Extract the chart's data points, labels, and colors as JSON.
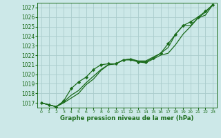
{
  "title": "Graphe pression niveau de la mer (hPa)",
  "bg_color": "#cce8e8",
  "grid_color": "#aacccc",
  "line_color": "#1a6b1a",
  "marker_color": "#1a6b1a",
  "ylim": [
    1016.5,
    1027.5
  ],
  "yticks": [
    1017,
    1018,
    1019,
    1020,
    1021,
    1022,
    1023,
    1024,
    1025,
    1026,
    1027
  ],
  "xlim": [
    -0.5,
    23.5
  ],
  "xticks": [
    0,
    1,
    2,
    3,
    4,
    5,
    6,
    7,
    8,
    9,
    10,
    11,
    12,
    13,
    14,
    15,
    16,
    17,
    18,
    19,
    20,
    21,
    22,
    23
  ],
  "series": [
    [
      1017.0,
      1016.8,
      1016.6,
      1017.2,
      1018.5,
      1019.2,
      1019.7,
      1020.5,
      1021.0,
      1021.1,
      1021.1,
      1021.5,
      1021.6,
      1021.3,
      1021.3,
      1021.7,
      1022.2,
      1023.2,
      1024.2,
      1025.1,
      1025.5,
      1026.0,
      1026.6,
      1027.3
    ],
    [
      1017.0,
      1016.8,
      1016.6,
      1017.1,
      1017.8,
      1018.3,
      1019.1,
      1019.8,
      1020.5,
      1021.0,
      1021.1,
      1021.5,
      1021.6,
      1021.4,
      1021.4,
      1021.8,
      1022.2,
      1022.8,
      1024.2,
      1025.1,
      1025.1,
      1025.9,
      1026.2,
      1027.3
    ],
    [
      1017.0,
      1016.8,
      1016.6,
      1017.0,
      1017.5,
      1018.0,
      1018.9,
      1019.5,
      1020.4,
      1021.0,
      1021.1,
      1021.5,
      1021.5,
      1021.3,
      1021.2,
      1021.6,
      1022.0,
      1022.2,
      1023.1,
      1024.2,
      1025.0,
      1025.9,
      1026.5,
      1027.3
    ]
  ]
}
